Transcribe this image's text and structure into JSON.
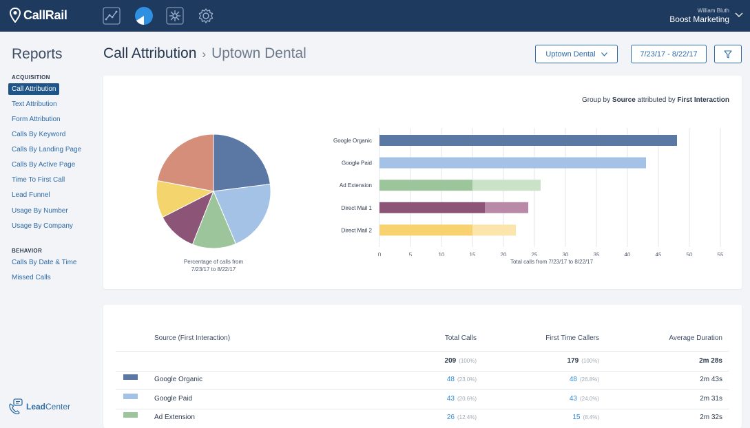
{
  "app": {
    "brand": "CallRail",
    "nav_icons": [
      "line-chart-icon",
      "pie-chart-icon",
      "network-icon",
      "gear-icon"
    ],
    "account_user": "William Bluth",
    "account_company": "Boost Marketing"
  },
  "sidebar": {
    "title": "Reports",
    "sections": [
      {
        "label": "ACQUISITION",
        "items": [
          "Call Attribution",
          "Text Attribution",
          "Form Attribution",
          "Calls By Keyword",
          "Calls By Landing Page",
          "Calls By Active Page",
          "Time To First Call",
          "Lead Funnel",
          "Usage By Number",
          "Usage By Company"
        ]
      },
      {
        "label": "BEHAVIOR",
        "items": [
          "Calls By Date & Time",
          "Missed Calls"
        ]
      }
    ],
    "active_item": "Call Attribution",
    "footer_brand_a": "Lead",
    "footer_brand_b": "Center"
  },
  "header": {
    "title": "Call Attribution",
    "separator": "›",
    "subtitle": "Uptown Dental",
    "company_select": "Uptown Dental",
    "date_range": "7/23/17 - 8/22/17"
  },
  "chart_card": {
    "group_by_prefix": "Group by",
    "group_by_field": "Source",
    "group_by_mid": "attributed by",
    "group_by_model": "First Interaction",
    "pie_caption_line1": "Percentage of calls from",
    "pie_caption_line2": "7/23/17 to 8/22/17",
    "bar_xlabel": "Total calls from 7/23/17 to 8/22/17"
  },
  "colors": {
    "google_organic": "#5b77a4",
    "google_paid": "#a3c2e5",
    "ad_extension": "#9cc59c",
    "ad_extension_light": "#c9e2c8",
    "direct_mail_1": "#8c5578",
    "direct_mail_1_light": "#b88aa8",
    "direct_mail_2": "#f7d26e",
    "direct_mail_2_light": "#fbe5aa",
    "unlabeled_slice_a": "#f4d46c",
    "unlabeled_slice_b": "#d48e79"
  },
  "chart_data": [
    {
      "type": "pie",
      "slices": [
        {
          "value": 23.0,
          "color": "#5b77a4"
        },
        {
          "value": 20.6,
          "color": "#a3c2e5"
        },
        {
          "value": 12.4,
          "color": "#9cc59c"
        },
        {
          "value": 11.5,
          "color": "#8c5578"
        },
        {
          "value": 10.5,
          "color": "#f4d46c"
        },
        {
          "value": 22.0,
          "color": "#d48e79"
        }
      ]
    },
    {
      "type": "bar",
      "orientation": "horizontal",
      "stacked": true,
      "categories": [
        "Google Organic",
        "Google Paid",
        "Ad Extension",
        "Direct Mail 1",
        "Direct Mail 2"
      ],
      "series": [
        {
          "values": [
            48,
            43,
            15,
            17,
            15
          ],
          "colors": [
            "#5b77a4",
            "#a3c2e5",
            "#9cc59c",
            "#8c5578",
            "#f7d26e"
          ]
        },
        {
          "values": [
            0,
            0,
            11,
            7,
            7
          ],
          "colors": [
            "#5b77a4",
            "#a3c2e5",
            "#c9e2c8",
            "#b88aa8",
            "#fbe5aa"
          ]
        }
      ],
      "xlim": [
        0,
        55
      ],
      "xticks": [
        0,
        5,
        10,
        15,
        20,
        25,
        30,
        35,
        40,
        45,
        50,
        55
      ],
      "xlabel": "Total calls from 7/23/17 to 8/22/17",
      "grid": true
    }
  ],
  "table": {
    "columns": [
      "Source (First Interaction)",
      "Total Calls",
      "First Time Callers",
      "Average Duration"
    ],
    "totals": {
      "calls": "209",
      "calls_pct": "(100%)",
      "first": "179",
      "first_pct": "(100%)",
      "duration": "2m 28s"
    },
    "rows": [
      {
        "color": "#5b77a4",
        "source": "Google Organic",
        "calls": "48",
        "calls_pct": "(23.0%)",
        "first": "48",
        "first_pct": "(26.8%)",
        "duration": "2m 43s"
      },
      {
        "color": "#a3c2e5",
        "source": "Google Paid",
        "calls": "43",
        "calls_pct": "(20.6%)",
        "first": "43",
        "first_pct": "(24.0%)",
        "duration": "2m 31s"
      },
      {
        "color": "#9cc59c",
        "source": "Ad Extension",
        "calls": "26",
        "calls_pct": "(12.4%)",
        "first": "15",
        "first_pct": "(8.4%)",
        "duration": "2m 32s"
      }
    ]
  }
}
